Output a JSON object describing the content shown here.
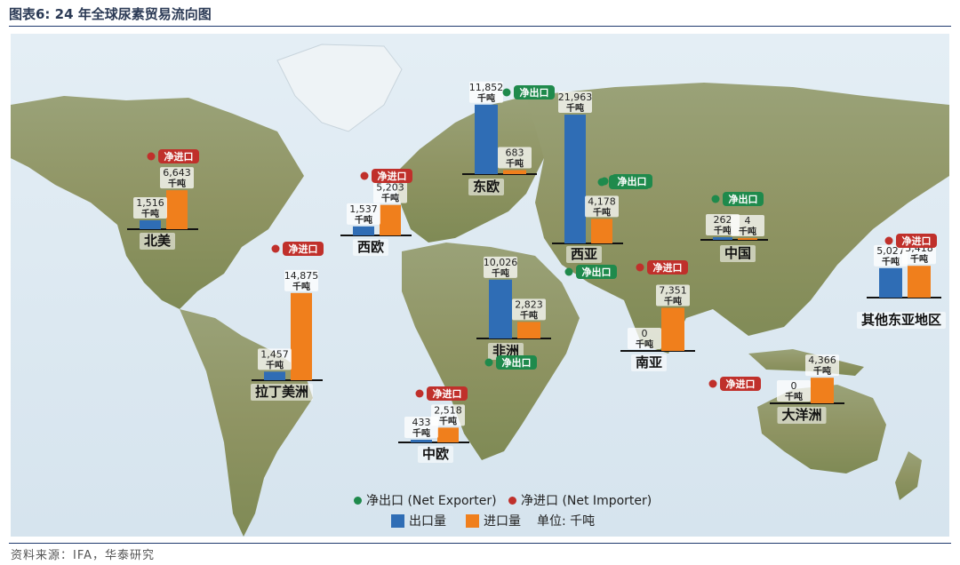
{
  "header": {
    "title": "图表6:  24 年全球尿素贸易流向图"
  },
  "footer": {
    "source": "资料来源：IFA，华泰研究"
  },
  "colors": {
    "export": "#2f6db5",
    "import": "#f07f1c",
    "net_exporter": "#1f8a4c",
    "net_importer": "#c0302b"
  },
  "legend": {
    "net_exporter": "净出口 (Net Exporter)",
    "net_importer": "净进口 (Net Importer)",
    "export": "出口量",
    "import": "进口量",
    "unit": "单位: 千吨"
  },
  "chart_data": {
    "type": "bar",
    "unit": "千吨",
    "series": [
      {
        "name": "出口量"
      },
      {
        "name": "进口量"
      }
    ],
    "regions": [
      {
        "name": "北美",
        "export": 1516,
        "import": 6643,
        "export_label": "1,516",
        "import_label": "6,643",
        "status": "净进口"
      },
      {
        "name": "西欧",
        "export": 1537,
        "import": 5203,
        "export_label": "1,537",
        "import_label": "5,203",
        "status": "净进口"
      },
      {
        "name": "拉丁美洲",
        "export": 1457,
        "import": 14875,
        "export_label": "1,457",
        "import_label": "14,875",
        "status": "净进口"
      },
      {
        "name": "东欧",
        "export": 11852,
        "import": 683,
        "export_label": "11,852",
        "import_label": "683",
        "status": "净出口"
      },
      {
        "name": "西亚",
        "export": 21963,
        "import": 4178,
        "export_label": "21,963",
        "import_label": "4,178",
        "status": "净出口"
      },
      {
        "name": "中国",
        "export": 262,
        "import": 4,
        "export_label": "262",
        "import_label": "4",
        "status": "净出口"
      },
      {
        "name": "其他东亚地区",
        "export": 5027,
        "import": 5418,
        "export_label": "5,027",
        "import_label": "5,418",
        "status": "净进口"
      },
      {
        "name": "非洲",
        "export": 10026,
        "import": 2823,
        "export_label": "10,026",
        "import_label": "2,823",
        "status": "净出口"
      },
      {
        "name": "南亚",
        "export": 0,
        "import": 7351,
        "export_label": "0",
        "import_label": "7,351",
        "status": "净进口"
      },
      {
        "name": "中欧",
        "export": 433,
        "import": 2518,
        "export_label": "433",
        "import_label": "2,518",
        "status": "净进口"
      },
      {
        "name": "大洋洲",
        "export": 0,
        "import": 4366,
        "export_label": "0",
        "import_label": "4,366",
        "status": "净进口"
      }
    ],
    "extra_badges": [
      {
        "text": "净出口",
        "status": "净出口"
      },
      {
        "text": "净出口",
        "status": "净出口"
      }
    ]
  }
}
